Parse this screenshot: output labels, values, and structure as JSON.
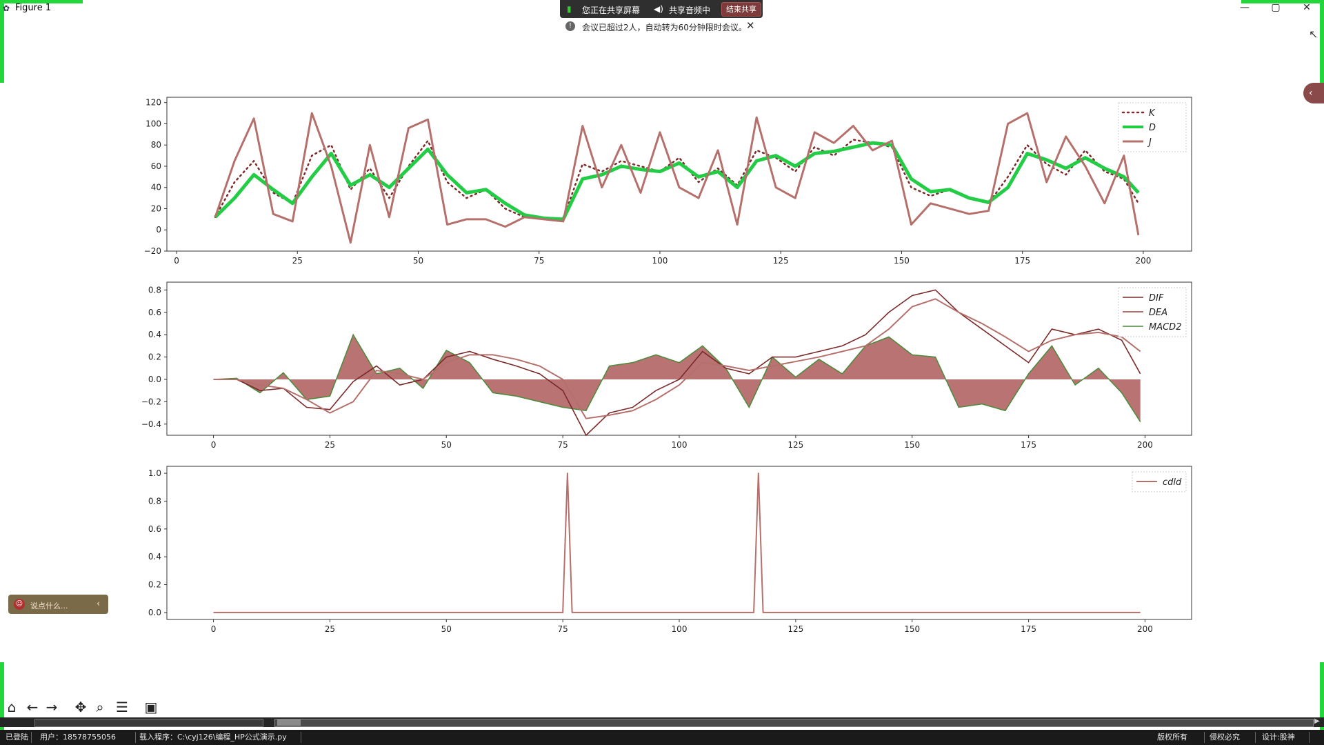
{
  "window": {
    "title": "Figure 1",
    "minimize": "—",
    "maximize": "▢",
    "close": "✕"
  },
  "screen_share": {
    "status": "您正在共享屏幕",
    "audio": "共享音频中",
    "end": "结束共享"
  },
  "notice": {
    "text": "会议已超过2人，自动转为60分钟限时会议。",
    "close": "✕"
  },
  "float_widget": {
    "text": "说点什么..."
  },
  "accent": {
    "edge_green": "#22d63c",
    "series_brown": "#b5706b",
    "series_darkred": "#7b2a2a",
    "series_green": "#22cc44",
    "fill": "#b87372"
  },
  "toolbar": {
    "home": "home-icon",
    "back": "arrow-left-icon",
    "forward": "arrow-right-icon",
    "pan": "move-icon",
    "zoom": "magnifier-icon",
    "configure": "sliders-icon",
    "save": "floppy-icon"
  },
  "statusbar": {
    "login": "已登陆",
    "user": "用户：18578755056",
    "program": "载入程序：C:\\cyj126\\编程_HP公式演示.py",
    "rights": "版权所有",
    "piracy": "侵权必究",
    "design": "设计:股神"
  },
  "chart_data": [
    {
      "type": "line",
      "xlim": [
        -2,
        210
      ],
      "ylim": [
        -20,
        125
      ],
      "xticks": [
        "0",
        "25",
        "50",
        "75",
        "100",
        "125",
        "150",
        "175",
        "200"
      ],
      "yticks": [
        "−20",
        "0",
        "20",
        "40",
        "60",
        "80",
        "100",
        "120"
      ],
      "legend_position": "top-right",
      "x": [
        8,
        12,
        16,
        20,
        24,
        28,
        32,
        36,
        40,
        44,
        48,
        52,
        56,
        60,
        64,
        68,
        72,
        76,
        80,
        84,
        88,
        92,
        96,
        100,
        104,
        108,
        112,
        116,
        120,
        124,
        128,
        132,
        136,
        140,
        144,
        148,
        152,
        156,
        160,
        164,
        168,
        172,
        176,
        180,
        184,
        188,
        192,
        196,
        199
      ],
      "series": [
        {
          "name": "K",
          "style": "dotted",
          "values": [
            12,
            45,
            65,
            35,
            25,
            70,
            80,
            38,
            58,
            30,
            60,
            84,
            45,
            30,
            38,
            20,
            12,
            10,
            10,
            62,
            55,
            65,
            60,
            55,
            68,
            45,
            58,
            42,
            75,
            68,
            55,
            78,
            70,
            85,
            82,
            78,
            40,
            32,
            38,
            30,
            25,
            50,
            80,
            62,
            52,
            75,
            55,
            48,
            25
          ]
        },
        {
          "name": "D",
          "style": "solid-thick",
          "values": [
            12,
            30,
            52,
            38,
            25,
            50,
            72,
            42,
            52,
            40,
            58,
            76,
            52,
            35,
            38,
            25,
            14,
            11,
            10,
            48,
            52,
            60,
            57,
            55,
            63,
            50,
            55,
            40,
            65,
            70,
            60,
            72,
            74,
            78,
            82,
            80,
            48,
            36,
            38,
            30,
            26,
            40,
            72,
            66,
            58,
            68,
            58,
            50,
            35
          ]
        },
        {
          "name": "J",
          "style": "solid",
          "values": [
            12,
            65,
            105,
            15,
            8,
            110,
            60,
            -12,
            80,
            12,
            96,
            104,
            5,
            10,
            10,
            3,
            12,
            10,
            8,
            98,
            40,
            80,
            35,
            92,
            40,
            30,
            75,
            5,
            106,
            40,
            30,
            92,
            82,
            98,
            75,
            84,
            5,
            25,
            20,
            15,
            18,
            100,
            110,
            45,
            88,
            60,
            25,
            70,
            -5
          ]
        }
      ]
    },
    {
      "type": "area",
      "xlim": [
        -10,
        210
      ],
      "ylim": [
        -0.5,
        0.87
      ],
      "xticks": [
        "0",
        "25",
        "50",
        "75",
        "100",
        "125",
        "150",
        "175",
        "200"
      ],
      "yticks": [
        "−0.4",
        "−0.2",
        "0.0",
        "0.2",
        "0.4",
        "0.6",
        "0.8"
      ],
      "legend_position": "top-right",
      "x": [
        0,
        5,
        10,
        15,
        20,
        25,
        30,
        35,
        40,
        45,
        50,
        55,
        60,
        65,
        70,
        75,
        80,
        85,
        90,
        95,
        100,
        105,
        110,
        115,
        120,
        125,
        130,
        135,
        140,
        145,
        150,
        155,
        160,
        165,
        170,
        175,
        180,
        185,
        190,
        195,
        199
      ],
      "series": [
        {
          "name": "DIF",
          "style": "thin-dark",
          "values": [
            0,
            0,
            -0.1,
            -0.08,
            -0.25,
            -0.27,
            -0.02,
            0.12,
            -0.05,
            0.0,
            0.2,
            0.25,
            0.18,
            0.12,
            0.05,
            -0.1,
            -0.5,
            -0.3,
            -0.25,
            -0.1,
            0.0,
            0.25,
            0.1,
            0.05,
            0.2,
            0.2,
            0.25,
            0.3,
            0.4,
            0.6,
            0.75,
            0.8,
            0.6,
            0.45,
            0.3,
            0.15,
            0.45,
            0.4,
            0.45,
            0.35,
            0.05
          ]
        },
        {
          "name": "DEA",
          "style": "thin-brown",
          "values": [
            0,
            0,
            -0.05,
            -0.08,
            -0.18,
            -0.3,
            -0.2,
            0.08,
            0.05,
            0.0,
            0.15,
            0.22,
            0.22,
            0.18,
            0.12,
            0.0,
            -0.35,
            -0.32,
            -0.28,
            -0.18,
            -0.05,
            0.15,
            0.12,
            0.08,
            0.12,
            0.16,
            0.2,
            0.25,
            0.3,
            0.45,
            0.65,
            0.72,
            0.6,
            0.5,
            0.38,
            0.25,
            0.35,
            0.4,
            0.42,
            0.38,
            0.25
          ]
        },
        {
          "name": "MACD2",
          "style": "filled",
          "values": [
            0,
            0.01,
            -0.12,
            0.06,
            -0.18,
            -0.15,
            0.4,
            0.05,
            0.1,
            -0.08,
            0.26,
            0.15,
            -0.12,
            -0.15,
            -0.2,
            -0.25,
            -0.28,
            0.12,
            0.15,
            0.22,
            0.15,
            0.3,
            0.1,
            -0.25,
            0.2,
            0.02,
            0.18,
            0.05,
            0.3,
            0.38,
            0.22,
            0.2,
            -0.25,
            -0.22,
            -0.28,
            0.05,
            0.3,
            -0.05,
            0.1,
            -0.12,
            -0.38
          ]
        }
      ]
    },
    {
      "type": "line",
      "xlim": [
        -10,
        210
      ],
      "ylim": [
        -0.05,
        1.05
      ],
      "xticks": [
        "0",
        "25",
        "50",
        "75",
        "100",
        "125",
        "150",
        "175",
        "200"
      ],
      "yticks": [
        "0.0",
        "0.2",
        "0.4",
        "0.6",
        "0.8",
        "1.0"
      ],
      "legend_position": "top-right",
      "series": [
        {
          "name": "cdld",
          "x": [
            0,
            75,
            76,
            77,
            116,
            117,
            118,
            199
          ],
          "values": [
            0,
            0,
            1,
            0,
            0,
            1,
            0,
            0
          ]
        }
      ]
    }
  ]
}
